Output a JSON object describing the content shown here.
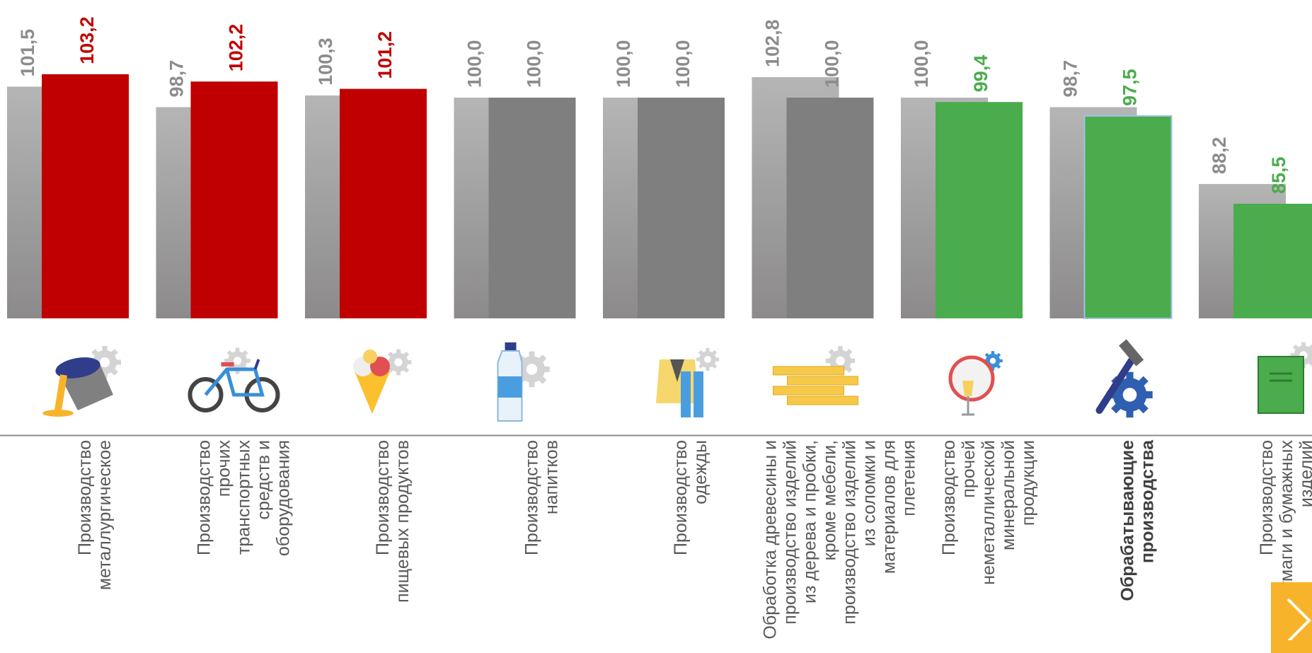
{
  "colors": {
    "prev_bar_top": "#b5b5b5",
    "prev_bar_bottom": "#8c8a8a",
    "red": "#c00000",
    "grey": "#7f7f7f",
    "green": "#4aac4c",
    "text_grey": "#8c8c8c",
    "label_text": "#595959",
    "axis": "#8c8c8c",
    "accent_button": "#f7b42a"
  },
  "chart_data": {
    "type": "bar",
    "ylim": [
      0,
      110
    ],
    "series": [
      {
        "values": [
          101.5,
          98.7,
          100.3,
          100.0,
          100.0,
          102.8,
          100.0,
          98.7,
          88.2
        ]
      },
      {
        "values": [
          103.2,
          102.2,
          101.2,
          100.0,
          100.0,
          100.0,
          99.4,
          97.5,
          85.5
        ]
      }
    ],
    "value_labels": {
      "previous": [
        "101,5",
        "98,7",
        "100,3",
        "100,0",
        "100,0",
        "102,8",
        "100,0",
        "98,7",
        "88,2"
      ],
      "current": [
        "103,2",
        "102,2",
        "101,2",
        "100,0",
        "100,0",
        "100,0",
        "99,4",
        "97,5",
        "85,5"
      ]
    },
    "current_colors": [
      "red",
      "red",
      "red",
      "grey",
      "grey",
      "grey",
      "green",
      "green",
      "green"
    ],
    "categories": [
      {
        "lines": [
          "Производство",
          "металлургическое"
        ],
        "bold": false,
        "icon": "metallurgy-icon"
      },
      {
        "lines": [
          "Производство",
          "прочих",
          "транспортных",
          "средств и",
          "оборудования"
        ],
        "bold": false,
        "icon": "bicycle-icon"
      },
      {
        "lines": [
          "Производство",
          "пищевых продуктов"
        ],
        "bold": false,
        "icon": "ice-cream-icon"
      },
      {
        "lines": [
          "Производство",
          "напитков"
        ],
        "bold": false,
        "icon": "water-bottle-icon"
      },
      {
        "lines": [
          "Производство",
          "одежды"
        ],
        "bold": false,
        "icon": "clothing-icon"
      },
      {
        "lines": [
          "Обработка древесины и",
          "производство изделий",
          "из дерева и пробки,",
          "кроме мебели,",
          "производство изделий",
          "из соломки и",
          "материалов для",
          "плетения"
        ],
        "bold": false,
        "icon": "wood-planks-icon"
      },
      {
        "lines": [
          "Производство",
          "прочей",
          "неметаллической",
          "минеральной",
          "продукции"
        ],
        "bold": false,
        "icon": "mirror-glass-icon"
      },
      {
        "lines": [
          "Обрабатывающие",
          "производства"
        ],
        "bold": true,
        "icon": "hammer-gear-icon"
      },
      {
        "lines": [
          "Производство",
          "бумаги и бумажных",
          "изделий"
        ],
        "bold": false,
        "icon": "book-icon"
      }
    ]
  }
}
